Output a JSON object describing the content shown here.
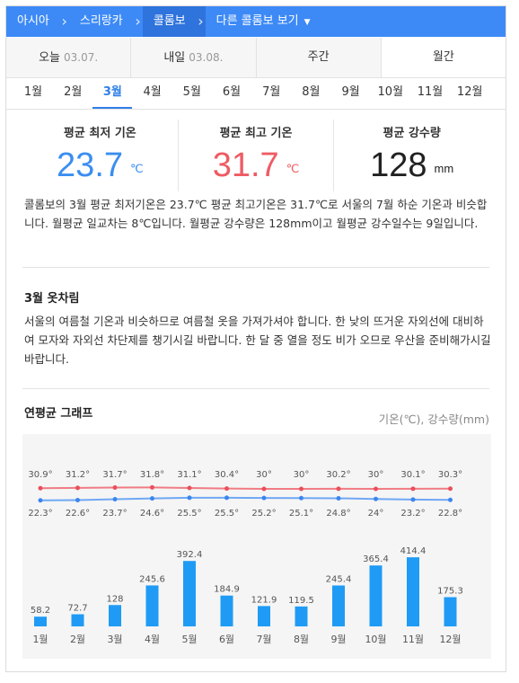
{
  "breadcrumb": [
    {
      "label": "아시아",
      "active": false
    },
    {
      "label": "스리랑카",
      "active": false
    },
    {
      "label": "콜롬보",
      "active": true
    },
    {
      "label": "다른 콜롬보 보기",
      "active": false,
      "caret": true
    }
  ],
  "day_tabs": [
    {
      "label": "오늘",
      "date": "03.07."
    },
    {
      "label": "내일",
      "date": "03.08."
    },
    {
      "label": "주간",
      "date": ""
    },
    {
      "label": "월간",
      "date": ""
    }
  ],
  "months": [
    "1월",
    "2월",
    "3월",
    "4월",
    "5월",
    "6월",
    "7월",
    "8월",
    "9월",
    "10월",
    "11월",
    "12월"
  ],
  "selected_month": "3월",
  "stats": {
    "min": {
      "label": "평균 최저 기온",
      "value": "23.7",
      "unit": "℃"
    },
    "max": {
      "label": "평균 최고 기온",
      "value": "31.7",
      "unit": "℃"
    },
    "rain": {
      "label": "평균 강수량",
      "value": "128",
      "unit": "mm"
    }
  },
  "summary": "콜롬보의 3월 평균 최저기온은 23.7℃ 평균 최고기온은 31.7℃로 서울의 7월 하순 기온과 비슷합니다. 월평균 일교차는 8℃입니다. 월평균 강수량은 128mm이고 월평균 강수일수는 9일입니다.",
  "clothing": {
    "title": "3월 옷차림",
    "text": "서울의 여름철 기온과 비슷하므로 여름철 옷을 가져가셔야 합니다. 한 낮의 뜨거운 자외선에 대비하여 모자와 자외선 차단제를 챙기시길 바랍니다. 한 달 중 열을 정도 비가 오므로 우산을 준비해가시길 바랍니다."
  },
  "graph": {
    "title": "연평균 그래프",
    "units": "기온(℃), 강수량(mm)"
  },
  "colors": {
    "accent": "#2f7fe8",
    "max_line": "#f07c84",
    "min_line": "#6fa8f5",
    "bar": "#1f9bf5"
  },
  "chart_data": {
    "type": "bar",
    "categories": [
      "1월",
      "2월",
      "3월",
      "4월",
      "5월",
      "6월",
      "7월",
      "8월",
      "9월",
      "10월",
      "11월",
      "12월"
    ],
    "series": [
      {
        "values": [
          30.9,
          31.2,
          31.7,
          31.8,
          31.1,
          30.4,
          30,
          30,
          30.2,
          30,
          30.1,
          30.3
        ],
        "type": "line"
      },
      {
        "values": [
          22.3,
          22.6,
          23.7,
          24.6,
          25.5,
          25.5,
          25.2,
          25.1,
          24.8,
          24,
          23.2,
          22.8
        ],
        "type": "line"
      },
      {
        "values": [
          58.2,
          72.7,
          128,
          245.6,
          392.4,
          184.9,
          121.9,
          119.5,
          245.4,
          365.4,
          414.4,
          175.3
        ],
        "type": "bar"
      }
    ],
    "max_labels": [
      "30.9°",
      "31.2°",
      "31.7°",
      "31.8°",
      "31.1°",
      "30.4°",
      "30°",
      "30°",
      "30.2°",
      "30°",
      "30.1°",
      "30.3°"
    ],
    "min_labels": [
      "22.3°",
      "22.6°",
      "23.7°",
      "24.6°",
      "25.5°",
      "25.5°",
      "25.2°",
      "25.1°",
      "24.8°",
      "24°",
      "23.2°",
      "22.8°"
    ],
    "bar_labels": [
      "58.2",
      "72.7",
      "128",
      "245.6",
      "392.4",
      "184.9",
      "121.9",
      "119.5",
      "245.4",
      "365.4",
      "414.4",
      "175.3"
    ]
  }
}
